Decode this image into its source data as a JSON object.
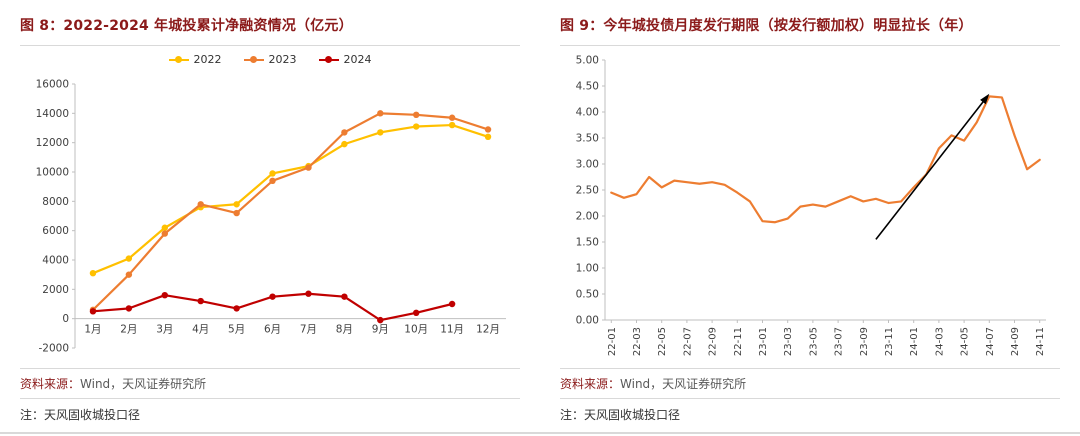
{
  "theme": {
    "title_color": "#8B1A1A",
    "divider_color": "#D9D9D9",
    "axis_text_color": "#404040",
    "axis_line_color": "#BFBFBF",
    "series_2022_color": "#FFC000",
    "series_2023_color": "#ED7D31",
    "series_2024_color": "#C00000",
    "arrow_color": "#000000"
  },
  "panels": [
    {
      "title": "图 8：2022-2024 年城投累计净融资情况（亿元）",
      "source_label": "资料来源：",
      "source_text": "Wind，天风证券研究所",
      "note": "注：天风固收城投口径"
    },
    {
      "title": "图 9：今年城投债月度发行期限（按发行额加权）明显拉长（年）",
      "source_label": "资料来源：",
      "source_text": "Wind，天风证券研究所",
      "note": "注：天风固收城投口径"
    }
  ],
  "chart_data": [
    {
      "type": "line",
      "title": "2022-2024 年城投累计净融资情况（亿元）",
      "categories": [
        "1月",
        "2月",
        "3月",
        "4月",
        "5月",
        "6月",
        "7月",
        "8月",
        "9月",
        "10月",
        "11月",
        "12月"
      ],
      "series": [
        {
          "name": "2022",
          "color": "#FFC000",
          "values": [
            3100,
            4100,
            6200,
            7600,
            7800,
            9900,
            10400,
            11900,
            12700,
            13100,
            13200,
            12400
          ]
        },
        {
          "name": "2023",
          "color": "#ED7D31",
          "values": [
            600,
            3000,
            5800,
            7800,
            7200,
            9400,
            10300,
            12700,
            14000,
            13900,
            13700,
            12900
          ]
        },
        {
          "name": "2024",
          "color": "#C00000",
          "values": [
            500,
            700,
            1600,
            1200,
            700,
            1500,
            1700,
            1500,
            -100,
            400,
            1000,
            null
          ]
        }
      ],
      "ylim": [
        -2000,
        16000
      ],
      "ytick_step": 2000,
      "ytick_decimals": 0,
      "xtick_every": 1,
      "xtick_rotate": false,
      "markers": true,
      "legend": true,
      "x_axis_at": 0,
      "grid": false,
      "legend_position": "top"
    },
    {
      "type": "line",
      "title": "今年城投债月度发行期限（按发行额加权）明显拉长（年）",
      "categories": [
        "22-01",
        "22-02",
        "22-03",
        "22-04",
        "22-05",
        "22-06",
        "22-07",
        "22-08",
        "22-09",
        "22-10",
        "22-11",
        "22-12",
        "23-01",
        "23-02",
        "23-03",
        "23-04",
        "23-05",
        "23-06",
        "23-07",
        "23-08",
        "23-09",
        "23-10",
        "23-11",
        "23-12",
        "24-01",
        "24-02",
        "24-03",
        "24-04",
        "24-05",
        "24-06",
        "24-07",
        "24-08",
        "24-09",
        "24-10",
        "24-11"
      ],
      "series": [
        {
          "name": "月度发行期限（按发行额加权）",
          "color": "#ED7D31",
          "values": [
            2.45,
            2.35,
            2.42,
            2.75,
            2.55,
            2.68,
            2.65,
            2.62,
            2.65,
            2.6,
            2.45,
            2.28,
            1.9,
            1.88,
            1.95,
            2.18,
            2.22,
            2.18,
            2.28,
            2.38,
            2.28,
            2.33,
            2.25,
            2.28,
            2.55,
            2.8,
            3.3,
            3.55,
            3.45,
            3.8,
            4.3,
            4.28,
            3.55,
            2.9,
            3.08
          ]
        }
      ],
      "ylim": [
        0,
        5
      ],
      "ytick_step": 0.5,
      "ytick_decimals": 2,
      "xtick_every": 2,
      "xtick_rotate": true,
      "markers": false,
      "legend": false,
      "x_axis_at": 0,
      "grid": false,
      "annotation": {
        "type": "arrow",
        "from": [
          "23-10",
          1.55
        ],
        "to": [
          "24-07",
          4.35
        ],
        "color": "#000000"
      }
    }
  ]
}
